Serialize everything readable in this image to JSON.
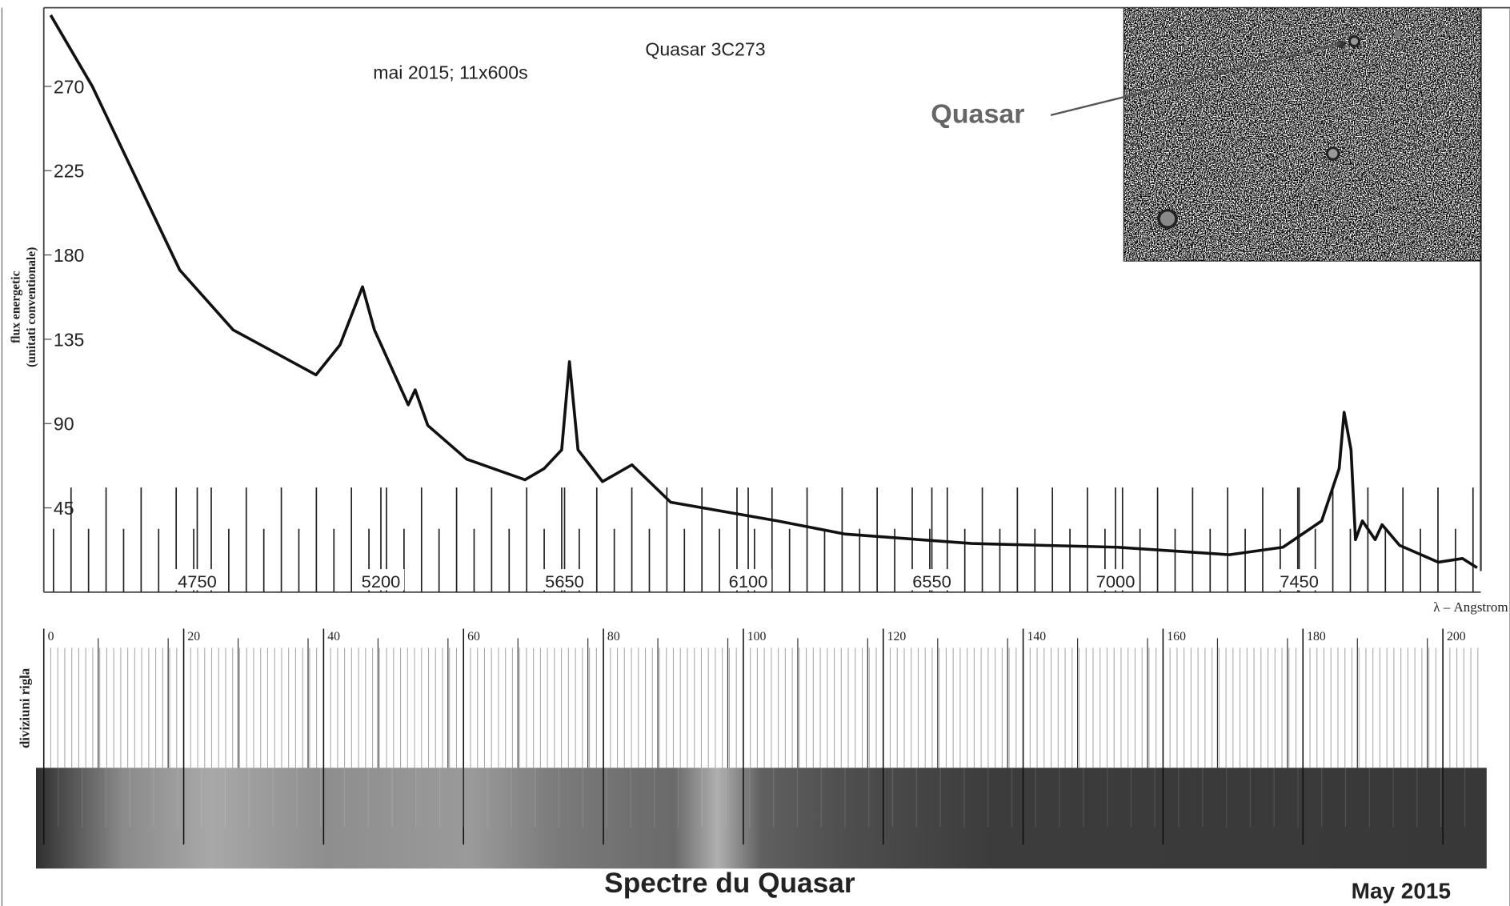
{
  "chart_data": {
    "type": "line",
    "title": "Quasar 3C273",
    "subtitle": "mai 2015; 11x600s",
    "ylabel": [
      "flux energetic",
      "(unitati conventionale)"
    ],
    "xlabel": "λ – Angstrom",
    "x": [
      4391,
      4493,
      4707,
      4838,
      5041,
      5100,
      5155,
      5184,
      5267,
      5284,
      5315,
      5410,
      5553,
      5600,
      5643,
      5662,
      5683,
      5743,
      5815,
      5910,
      6172,
      6338,
      6648,
      7005,
      7279,
      7410,
      7505,
      7548,
      7560,
      7577,
      7588,
      7605,
      7636,
      7653,
      7696,
      7791,
      7850,
      7886
    ],
    "values": [
      308,
      270,
      172,
      140,
      116,
      132,
      163,
      140,
      100,
      108,
      89,
      71,
      60,
      66,
      76,
      123,
      76,
      59,
      68,
      48,
      38,
      31,
      26,
      24,
      20,
      24,
      38,
      66,
      96,
      76,
      28,
      38,
      28,
      36,
      25,
      16,
      18,
      13
    ],
    "color": "#111111",
    "xlim": [
      4374,
      7895
    ],
    "xticks": [
      4750,
      5200,
      5650,
      6100,
      6550,
      7000,
      7450
    ],
    "ylim": [
      0,
      312
    ],
    "yticks": [
      45,
      90,
      135,
      180,
      225,
      270
    ],
    "annotation": "Quasar",
    "ruler": {
      "label": "diviziuni rigla",
      "lim": [
        0,
        200
      ],
      "ticks": [
        0,
        20,
        40,
        60,
        80,
        100,
        120,
        140,
        160,
        180,
        200
      ]
    },
    "footer": "Spectre du Quasar",
    "footer_date": "May 2015"
  }
}
